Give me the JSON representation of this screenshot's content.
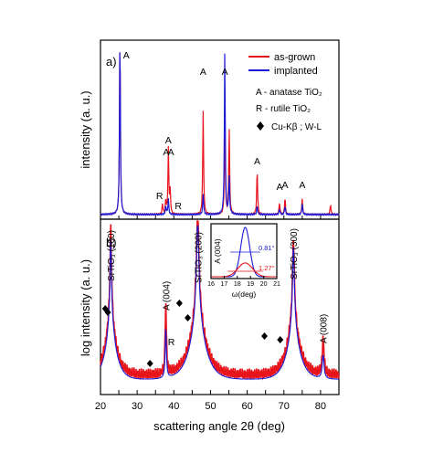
{
  "figure": {
    "panel_a_label": "a)",
    "panel_b_label": "b)",
    "ylabel_a": "intensity (a. u.)",
    "ylabel_b": "log intensity (a. u.)",
    "xlabel": "scattering angle 2θ (deg)"
  },
  "legend": {
    "as_grown": "as-grown",
    "implanted": "implanted"
  },
  "key": {
    "anatase": "A  - anatase TiO₂",
    "rutile": "R  - rutile TiO₂",
    "cukb": "Cu-Kβ ; W-L"
  },
  "colors": {
    "as_grown": "#e8141c",
    "implanted": "#1b1bd6"
  },
  "chart_data": [
    {
      "panel": "a",
      "type": "line",
      "xlim": [
        20,
        85
      ],
      "ylabel": "intensity (a. u.)",
      "series": [
        {
          "name": "as-grown",
          "color": "#e8141c",
          "peaks": [
            [
              25.3,
              1.05
            ],
            [
              36.9,
              0.06
            ],
            [
              37.8,
              0.08
            ],
            [
              38.5,
              0.38
            ],
            [
              39.0,
              0.13
            ],
            [
              48.0,
              0.6
            ],
            [
              53.9,
              0.52
            ],
            [
              55.1,
              0.5
            ],
            [
              62.7,
              0.26
            ],
            [
              68.8,
              0.07
            ],
            [
              70.3,
              0.1
            ],
            [
              75.0,
              0.09
            ],
            [
              82.7,
              0.06
            ]
          ]
        },
        {
          "name": "implanted",
          "color": "#1b1bd6",
          "peaks": [
            [
              25.3,
              1.05
            ],
            [
              37.8,
              0.05
            ],
            [
              38.5,
              0.09
            ],
            [
              48.0,
              0.12
            ],
            [
              53.9,
              0.95
            ],
            [
              55.1,
              0.22
            ],
            [
              62.7,
              0.05
            ],
            [
              68.8,
              0.03
            ],
            [
              70.3,
              0.05
            ],
            [
              75.0,
              0.06
            ]
          ]
        }
      ],
      "annotations": [
        {
          "label": "A",
          "x": 25.3
        },
        {
          "label": "A",
          "x": 37.9
        },
        {
          "label": "A",
          "x": 38.5
        },
        {
          "label": "A",
          "x": 39.2
        },
        {
          "label": "R",
          "x": 36.1
        },
        {
          "label": "R",
          "x": 41.2
        },
        {
          "label": "A",
          "x": 48.0
        },
        {
          "label": "A",
          "x": 53.9
        },
        {
          "label": "A",
          "x": 62.7
        },
        {
          "label": "A",
          "x": 68.8
        },
        {
          "label": "A",
          "x": 70.3
        },
        {
          "label": "A",
          "x": 75.0
        }
      ],
      "legend_position": "top-right"
    },
    {
      "panel": "b",
      "type": "line",
      "xlim": [
        20,
        85
      ],
      "xticks": [
        20,
        25,
        30,
        35,
        40,
        45,
        50,
        55,
        60,
        65,
        70,
        75,
        80,
        85
      ],
      "xlabel": "scattering angle 2θ (deg)",
      "ylabel": "log intensity (a. u.)",
      "annotations": [
        {
          "label": "SrTiO₃ (100)",
          "x": 22.8
        },
        {
          "label": "A (004)",
          "x": 37.8
        },
        {
          "label": "SrTiO₃ (200)",
          "x": 46.5
        },
        {
          "label": "SrTiO₃ (300)",
          "x": 72.6
        },
        {
          "label": "A (008)",
          "x": 80.7
        },
        {
          "label": "R",
          "x": 39.3
        }
      ],
      "diamonds_x": [
        21.3,
        22.0,
        33.5,
        41.5,
        43.8,
        64.7,
        69.0
      ]
    },
    {
      "panel": "inset",
      "type": "line",
      "title": "A (004)",
      "xlabel": "ω(deg)",
      "xlim": [
        16,
        21
      ],
      "xticks": [
        16,
        17,
        18,
        19,
        20,
        21
      ],
      "series": [
        {
          "name": "implanted",
          "center": 18.6,
          "fwhm_label": "0.81°",
          "peak": 1.0
        },
        {
          "name": "as-grown",
          "center": 18.6,
          "fwhm_label": "1.27°",
          "peak": 0.28
        }
      ]
    }
  ]
}
